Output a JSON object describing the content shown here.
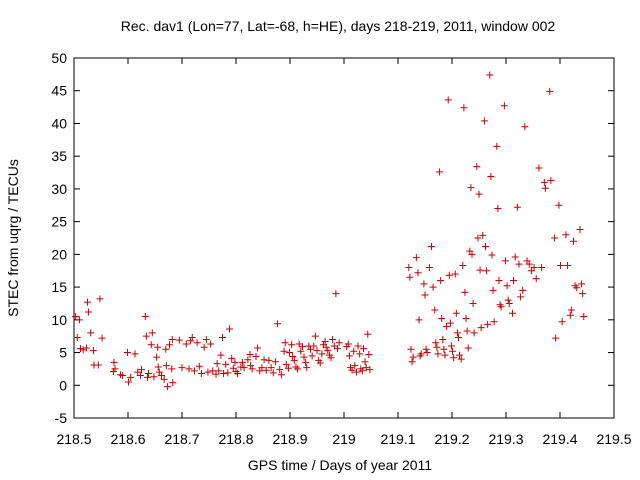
{
  "chart_data": {
    "type": "scatter",
    "title": "Rec. dav1 (Lon=77, Lat=-68, h=HE), days 218-219, 2011, window 002",
    "xlabel": "GPS time / Days of year 2011",
    "ylabel": "STEC from uqrg / TECUs",
    "xlim": [
      218.5,
      219.5
    ],
    "ylim": [
      -5,
      50
    ],
    "x_ticks": [
      218.5,
      218.6,
      218.7,
      218.8,
      218.9,
      219.0,
      219.1,
      219.2,
      219.3,
      219.4,
      219.5
    ],
    "x_tick_labels": [
      "218.5",
      "218.6",
      "218.7",
      "218.8",
      "218.9",
      "219",
      "219.1",
      "219.2",
      "219.3",
      "219.4",
      "219.5"
    ],
    "y_ticks": [
      -5,
      0,
      5,
      10,
      15,
      20,
      25,
      30,
      35,
      40,
      45,
      50
    ],
    "y_tick_labels": [
      "-5",
      "0",
      "5",
      "10",
      "15",
      "20",
      "25",
      "30",
      "35",
      "40",
      "45",
      "50"
    ],
    "marker": "plus",
    "color": "#cc0000",
    "grid": false,
    "series": [
      {
        "points": [
          [
            218.503,
            10.5
          ],
          [
            218.506,
            7.3
          ],
          [
            218.51,
            10.0
          ],
          [
            218.512,
            5.6
          ],
          [
            218.517,
            5.4
          ],
          [
            218.523,
            5.7
          ],
          [
            218.525,
            12.7
          ],
          [
            218.527,
            11.2
          ],
          [
            218.531,
            8.0
          ],
          [
            218.536,
            5.3
          ],
          [
            218.537,
            3.1
          ],
          [
            218.545,
            3.1
          ],
          [
            218.548,
            13.2
          ],
          [
            218.552,
            7.2
          ],
          [
            218.573,
            2.1
          ],
          [
            218.574,
            3.5
          ],
          [
            218.576,
            2.5
          ],
          [
            218.586,
            1.6
          ],
          [
            218.59,
            1.5
          ],
          [
            218.599,
            5.0
          ],
          [
            218.601,
            0.5
          ],
          [
            218.605,
            1.2
          ],
          [
            218.613,
            4.8
          ],
          [
            218.618,
            2.0
          ],
          [
            218.623,
            1.5
          ],
          [
            218.625,
            2.4
          ],
          [
            218.632,
            10.5
          ],
          [
            218.634,
            7.5
          ],
          [
            218.636,
            1.2
          ],
          [
            218.638,
            1.8
          ],
          [
            218.643,
            6.2
          ],
          [
            218.645,
            8.0
          ],
          [
            218.648,
            1.3
          ],
          [
            218.653,
            4.3
          ],
          [
            218.655,
            5.8
          ],
          [
            218.656,
            2.8
          ],
          [
            218.658,
            2.0
          ],
          [
            218.662,
            1.5
          ],
          [
            218.667,
            0.9
          ],
          [
            218.67,
            5.5
          ],
          [
            218.671,
            3.0
          ],
          [
            218.673,
            -0.2
          ],
          [
            218.677,
            6.2
          ],
          [
            218.681,
            2.5
          ],
          [
            218.682,
            7.0
          ],
          [
            218.683,
            0.4
          ],
          [
            218.695,
            6.9
          ],
          [
            218.7,
            2.7
          ],
          [
            218.708,
            6.3
          ],
          [
            218.713,
            2.5
          ],
          [
            218.716,
            6.8
          ],
          [
            218.719,
            7.3
          ],
          [
            218.723,
            2.2
          ],
          [
            218.728,
            6.5
          ],
          [
            218.732,
            2.9
          ],
          [
            218.736,
            1.8
          ],
          [
            218.741,
            5.8
          ],
          [
            218.745,
            7.0
          ],
          [
            218.748,
            2.0
          ],
          [
            218.753,
            6.3
          ],
          [
            218.757,
            2.2
          ],
          [
            218.763,
            1.7
          ],
          [
            218.765,
            3.3
          ],
          [
            218.768,
            2.2
          ],
          [
            218.772,
            4.6
          ],
          [
            218.775,
            7.3
          ],
          [
            218.777,
            1.8
          ],
          [
            218.781,
            3.2
          ],
          [
            218.785,
            1.9
          ],
          [
            218.788,
            8.6
          ],
          [
            218.792,
            4.1
          ],
          [
            218.795,
            2.6
          ],
          [
            218.798,
            3.5
          ],
          [
            218.8,
            2.1
          ],
          [
            218.803,
            1.8
          ],
          [
            218.809,
            2.8
          ],
          [
            218.812,
            3.5
          ],
          [
            218.815,
            2.7
          ],
          [
            218.822,
            3.9
          ],
          [
            218.826,
            4.7
          ],
          [
            218.827,
            3.0
          ],
          [
            218.83,
            2.5
          ],
          [
            218.837,
            4.4
          ],
          [
            218.84,
            5.7
          ],
          [
            218.844,
            2.2
          ],
          [
            218.848,
            2.7
          ],
          [
            218.852,
            3.9
          ],
          [
            218.856,
            2.3
          ],
          [
            218.861,
            3.8
          ],
          [
            218.865,
            2.7
          ],
          [
            218.869,
            1.9
          ],
          [
            218.873,
            3.6
          ],
          [
            218.877,
            9.4
          ],
          [
            218.881,
            2.4
          ],
          [
            218.884,
            1.6
          ],
          [
            218.889,
            5.2
          ],
          [
            218.891,
            6.5
          ],
          [
            218.893,
            3.2
          ],
          [
            218.897,
            2.6
          ],
          [
            218.899,
            5.0
          ],
          [
            218.903,
            6.2
          ],
          [
            218.905,
            4.4
          ],
          [
            218.908,
            3.8
          ],
          [
            218.911,
            2.8
          ],
          [
            218.914,
            2.5
          ],
          [
            218.917,
            6.3
          ],
          [
            218.92,
            5.2
          ],
          [
            218.923,
            5.9
          ],
          [
            218.926,
            4.3
          ],
          [
            218.929,
            3.5
          ],
          [
            218.931,
            2.7
          ],
          [
            218.935,
            6.0
          ],
          [
            218.938,
            5.5
          ],
          [
            218.941,
            4.5
          ],
          [
            218.944,
            6.0
          ],
          [
            218.947,
            7.5
          ],
          [
            218.95,
            5.3
          ],
          [
            218.953,
            3.8
          ],
          [
            218.956,
            3.4
          ],
          [
            218.959,
            4.8
          ],
          [
            218.962,
            6.2
          ],
          [
            218.965,
            6.7
          ],
          [
            218.967,
            5.8
          ],
          [
            218.97,
            5.3
          ],
          [
            218.973,
            4.6
          ],
          [
            218.976,
            4.2
          ],
          [
            218.979,
            7.0
          ],
          [
            218.982,
            6.0
          ],
          [
            218.985,
            14.0
          ],
          [
            218.988,
            5.6
          ],
          [
            218.991,
            6.5
          ],
          [
            219.005,
            5.9
          ],
          [
            219.008,
            6.3
          ],
          [
            219.01,
            4.5
          ],
          [
            219.012,
            2.7
          ],
          [
            219.015,
            2.3
          ],
          [
            219.018,
            5.2
          ],
          [
            219.02,
            3.0
          ],
          [
            219.023,
            2.0
          ],
          [
            219.026,
            6.0
          ],
          [
            219.029,
            4.8
          ],
          [
            219.031,
            2.5
          ],
          [
            219.034,
            2.2
          ],
          [
            219.036,
            5.6
          ],
          [
            219.039,
            3.6
          ],
          [
            219.041,
            2.7
          ],
          [
            219.044,
            7.8
          ],
          [
            219.046,
            4.7
          ],
          [
            219.048,
            2.4
          ],
          [
            219.12,
            18.0
          ],
          [
            219.122,
            16.5
          ],
          [
            219.124,
            5.5
          ],
          [
            219.126,
            3.6
          ],
          [
            219.128,
            4.3
          ],
          [
            219.134,
            19.5
          ],
          [
            219.137,
            17.2
          ],
          [
            219.139,
            10.0
          ],
          [
            219.141,
            4.5
          ],
          [
            219.143,
            4.8
          ],
          [
            219.148,
            15.5
          ],
          [
            219.15,
            13.8
          ],
          [
            219.152,
            5.5
          ],
          [
            219.154,
            5.0
          ],
          [
            219.158,
            18.0
          ],
          [
            219.162,
            21.2
          ],
          [
            219.165,
            15.0
          ],
          [
            219.168,
            11.5
          ],
          [
            219.17,
            6.5
          ],
          [
            219.172,
            5.8
          ],
          [
            219.174,
            4.8
          ],
          [
            219.177,
            32.6
          ],
          [
            219.179,
            16.0
          ],
          [
            219.181,
            10.2
          ],
          [
            219.183,
            7.0
          ],
          [
            219.185,
            5.5
          ],
          [
            219.187,
            4.6
          ],
          [
            219.19,
            9.0
          ],
          [
            219.193,
            43.6
          ],
          [
            219.195,
            16.8
          ],
          [
            219.197,
            9.5
          ],
          [
            219.199,
            6.0
          ],
          [
            219.201,
            5.2
          ],
          [
            219.203,
            4.2
          ],
          [
            219.206,
            17.0
          ],
          [
            219.208,
            11.0
          ],
          [
            219.21,
            8.0
          ],
          [
            219.212,
            7.3
          ],
          [
            219.214,
            4.6
          ],
          [
            219.217,
            4.0
          ],
          [
            219.22,
            18.3
          ],
          [
            219.222,
            42.4
          ],
          [
            219.224,
            14.2
          ],
          [
            219.226,
            10.2
          ],
          [
            219.228,
            8.3
          ],
          [
            219.23,
            5.7
          ],
          [
            219.233,
            20.5
          ],
          [
            219.235,
            30.2
          ],
          [
            219.237,
            20.0
          ],
          [
            219.239,
            12.5
          ],
          [
            219.241,
            8.0
          ],
          [
            219.246,
            33.4
          ],
          [
            219.248,
            22.5
          ],
          [
            219.25,
            29.2
          ],
          [
            219.252,
            17.6
          ],
          [
            219.254,
            8.8
          ],
          [
            219.257,
            22.9
          ],
          [
            219.26,
            40.4
          ],
          [
            219.262,
            21.2
          ],
          [
            219.264,
            17.5
          ],
          [
            219.266,
            9.3
          ],
          [
            219.27,
            47.4
          ],
          [
            219.272,
            31.9
          ],
          [
            219.274,
            19.9
          ],
          [
            219.276,
            14.5
          ],
          [
            219.278,
            9.7
          ],
          [
            219.283,
            36.5
          ],
          [
            219.285,
            27.0
          ],
          [
            219.287,
            16.0
          ],
          [
            219.289,
            12.3
          ],
          [
            219.291,
            12.0
          ],
          [
            219.297,
            42.7
          ],
          [
            219.299,
            19.0
          ],
          [
            219.302,
            15.2
          ],
          [
            219.304,
            13.0
          ],
          [
            219.306,
            12.5
          ],
          [
            219.312,
            11.0
          ],
          [
            219.314,
            16.0
          ],
          [
            219.317,
            19.6
          ],
          [
            219.321,
            27.2
          ],
          [
            219.324,
            18.5
          ],
          [
            219.327,
            13.5
          ],
          [
            219.331,
            14.5
          ],
          [
            219.335,
            39.5
          ],
          [
            219.339,
            19.0
          ],
          [
            219.343,
            18.5
          ],
          [
            219.347,
            17.5
          ],
          [
            219.352,
            18.0
          ],
          [
            219.356,
            16.3
          ],
          [
            219.361,
            33.2
          ],
          [
            219.366,
            18.0
          ],
          [
            219.371,
            31.0
          ],
          [
            219.373,
            30.1
          ],
          [
            219.381,
            44.9
          ],
          [
            219.383,
            31.3
          ],
          [
            219.39,
            22.5
          ],
          [
            219.392,
            7.2
          ],
          [
            219.398,
            27.5
          ],
          [
            219.401,
            18.3
          ],
          [
            219.404,
            9.7
          ],
          [
            219.411,
            23.0
          ],
          [
            219.414,
            18.3
          ],
          [
            219.419,
            10.7
          ],
          [
            219.421,
            11.5
          ],
          [
            219.425,
            22.0
          ],
          [
            219.428,
            15.2
          ],
          [
            219.431,
            14.9
          ],
          [
            219.437,
            23.8
          ],
          [
            219.44,
            15.5
          ],
          [
            219.442,
            14.0
          ],
          [
            219.444,
            10.5
          ]
        ]
      }
    ]
  }
}
